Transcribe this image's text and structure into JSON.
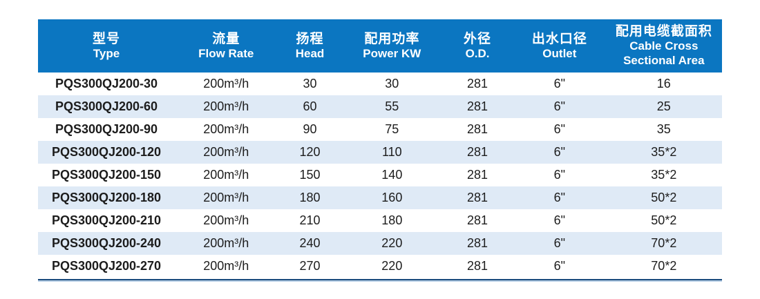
{
  "colors": {
    "header_bg": "#0b76c1",
    "stripe_bg": "#dfeaf6",
    "bottom_bar_navy": "#1a4b7d",
    "bottom_bar_light": "#b7cfe6",
    "body_text": "#1c1c1c",
    "header_text": "#ffffff"
  },
  "table": {
    "columns": [
      {
        "zh": "型号",
        "en": "Type"
      },
      {
        "zh": "流量",
        "en": "Flow Rate"
      },
      {
        "zh": "扬程",
        "en": "Head"
      },
      {
        "zh": "配用功率",
        "en": "Power KW"
      },
      {
        "zh": "外径",
        "en": "O.D."
      },
      {
        "zh": "出水口径",
        "en": "Outlet"
      },
      {
        "zh": "配用电缆截面积",
        "en": "Cable Cross\nSectional Area"
      }
    ],
    "rows": [
      [
        "PQS300QJ200-30",
        "200m³/h",
        "30",
        "30",
        "281",
        "6\"",
        "16"
      ],
      [
        "PQS300QJ200-60",
        "200m³/h",
        "60",
        "55",
        "281",
        "6\"",
        "25"
      ],
      [
        "PQS300QJ200-90",
        "200m³/h",
        "90",
        "75",
        "281",
        "6\"",
        "35"
      ],
      [
        "PQS300QJ200-120",
        "200m³/h",
        "120",
        "110",
        "281",
        "6\"",
        "35*2"
      ],
      [
        "PQS300QJ200-150",
        "200m³/h",
        "150",
        "140",
        "281",
        "6\"",
        "35*2"
      ],
      [
        "PQS300QJ200-180",
        "200m³/h",
        "180",
        "160",
        "281",
        "6\"",
        "50*2"
      ],
      [
        "PQS300QJ200-210",
        "200m³/h",
        "210",
        "180",
        "281",
        "6\"",
        "50*2"
      ],
      [
        "PQS300QJ200-240",
        "200m³/h",
        "240",
        "220",
        "281",
        "6\"",
        "70*2"
      ],
      [
        "PQS300QJ200-270",
        "200m³/h",
        "270",
        "220",
        "281",
        "6\"",
        "70*2"
      ]
    ]
  }
}
